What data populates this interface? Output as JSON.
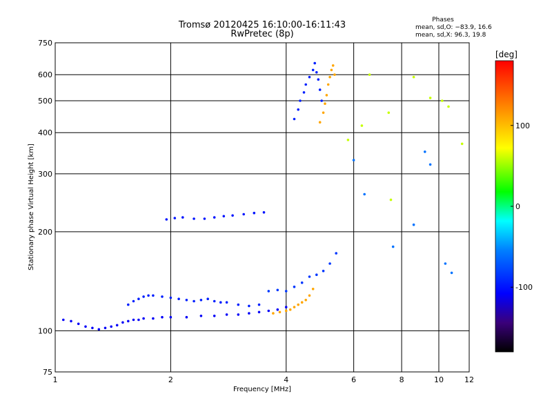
{
  "chart_data": {
    "type": "scatter",
    "title": "Tromsø 20120425 16:10:00-16:11:43",
    "subtitle": "RwPretec (8p)",
    "xlabel": "Frequency [MHz]",
    "ylabel": "Stationary phase Virtual Height [km]",
    "x_scale": "log",
    "y_scale": "log",
    "xlim": [
      1,
      12
    ],
    "ylim": [
      75,
      750
    ],
    "x_ticks": [
      1,
      2,
      4,
      6,
      8,
      10,
      12
    ],
    "y_ticks": [
      75,
      100,
      200,
      300,
      400,
      500,
      600,
      750
    ],
    "grid": true,
    "phases_info": {
      "heading": "Phases",
      "line_o": "mean, sd,O: −83.9, 16.6",
      "line_x": "mean, sd,X:  96.3, 19.8"
    },
    "colorbar": {
      "label": "[deg]",
      "range": [
        -180,
        180
      ],
      "ticks": [
        100,
        0,
        -100
      ]
    },
    "point_groups": [
      {
        "x": [
          1.05,
          1.1,
          1.15,
          1.2,
          1.25,
          1.3,
          1.35,
          1.4,
          1.45,
          1.5,
          1.55,
          1.6,
          1.65,
          1.7,
          1.8,
          1.9,
          2.0,
          2.2,
          2.4,
          2.6,
          2.8,
          3.0,
          3.2,
          3.4,
          3.6,
          3.8,
          4.0
        ],
        "y": [
          108,
          107,
          105,
          103,
          102,
          101,
          102,
          103,
          104,
          106,
          107,
          108,
          108,
          109,
          109,
          110,
          110,
          110,
          111,
          111,
          112,
          112,
          113,
          114,
          115,
          116,
          118
        ],
        "phase": -110
      },
      {
        "x": [
          1.55,
          1.6,
          1.65,
          1.7,
          1.75,
          1.8,
          1.9,
          2.0,
          2.1,
          2.2,
          2.3,
          2.4,
          2.5,
          2.6,
          2.7,
          2.8,
          3.0,
          3.2,
          3.4
        ],
        "y": [
          120,
          123,
          125,
          127,
          128,
          128,
          127,
          126,
          125,
          124,
          123,
          124,
          125,
          123,
          122,
          122,
          120,
          119,
          120
        ],
        "phase": -95
      },
      {
        "x": [
          1.95,
          2.05,
          2.15,
          2.3,
          2.45,
          2.6,
          2.75,
          2.9,
          3.1,
          3.3,
          3.5
        ],
        "y": [
          218,
          220,
          221,
          219,
          219,
          221,
          223,
          224,
          226,
          228,
          229
        ],
        "phase": -100
      },
      {
        "x": [
          3.7,
          3.85,
          4.0,
          4.1,
          4.2,
          4.3,
          4.4,
          4.5,
          4.6,
          4.7
        ],
        "y": [
          113,
          114,
          115,
          116,
          118,
          120,
          122,
          124,
          128,
          134
        ],
        "phase": 110
      },
      {
        "x": [
          3.6,
          3.8,
          4.0,
          4.2,
          4.4,
          4.6,
          4.8,
          5.0,
          5.2,
          5.4
        ],
        "y": [
          132,
          133,
          132,
          136,
          140,
          146,
          148,
          152,
          160,
          172
        ],
        "phase": -85
      },
      {
        "x": [
          4.2,
          4.3,
          4.35,
          4.45,
          4.5,
          4.6,
          4.7,
          4.75,
          4.8,
          4.85,
          4.9,
          4.95
        ],
        "y": [
          440,
          470,
          500,
          530,
          560,
          590,
          620,
          650,
          610,
          580,
          540,
          500
        ],
        "phase": -95
      },
      {
        "x": [
          4.9,
          5.0,
          5.05,
          5.1,
          5.15,
          5.2,
          5.25,
          5.3,
          5.35
        ],
        "y": [
          430,
          460,
          490,
          520,
          560,
          590,
          620,
          640,
          600
        ],
        "phase": 110
      },
      {
        "x": [
          5.8,
          6.3,
          6.6,
          7.4,
          7.5,
          8.6,
          9.5,
          10.2,
          10.6,
          11.5
        ],
        "y": [
          380,
          420,
          600,
          460,
          250,
          590,
          510,
          500,
          480,
          370
        ],
        "phase": 60
      },
      {
        "x": [
          6.0,
          6.4,
          7.6,
          8.6,
          9.2,
          9.5,
          10.4,
          10.8
        ],
        "y": [
          330,
          260,
          180,
          210,
          350,
          320,
          160,
          150
        ],
        "phase": -60
      }
    ]
  }
}
